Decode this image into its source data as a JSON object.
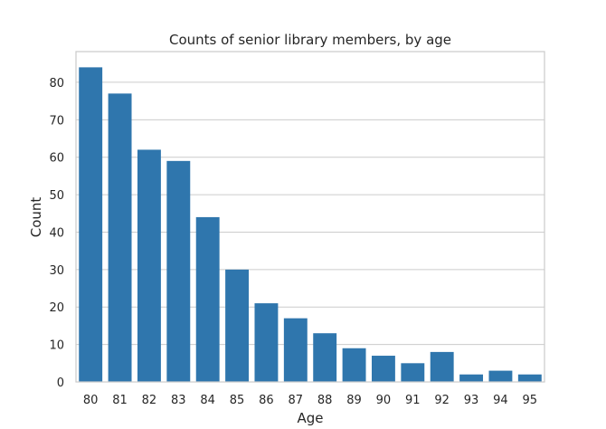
{
  "chart_data": {
    "type": "bar",
    "title": "Counts of senior library members, by age",
    "xlabel": "Age",
    "ylabel": "Count",
    "categories": [
      "80",
      "81",
      "82",
      "83",
      "84",
      "85",
      "86",
      "87",
      "88",
      "89",
      "90",
      "91",
      "92",
      "93",
      "94",
      "95"
    ],
    "values": [
      84,
      77,
      62,
      59,
      44,
      30,
      21,
      17,
      13,
      9,
      7,
      5,
      8,
      2,
      3,
      2
    ],
    "ylim": [
      0,
      88.2
    ],
    "yticks": [
      0,
      10,
      20,
      30,
      40,
      50,
      60,
      70,
      80
    ],
    "grid": "horizontal",
    "bar_color": "#2f76ad"
  }
}
